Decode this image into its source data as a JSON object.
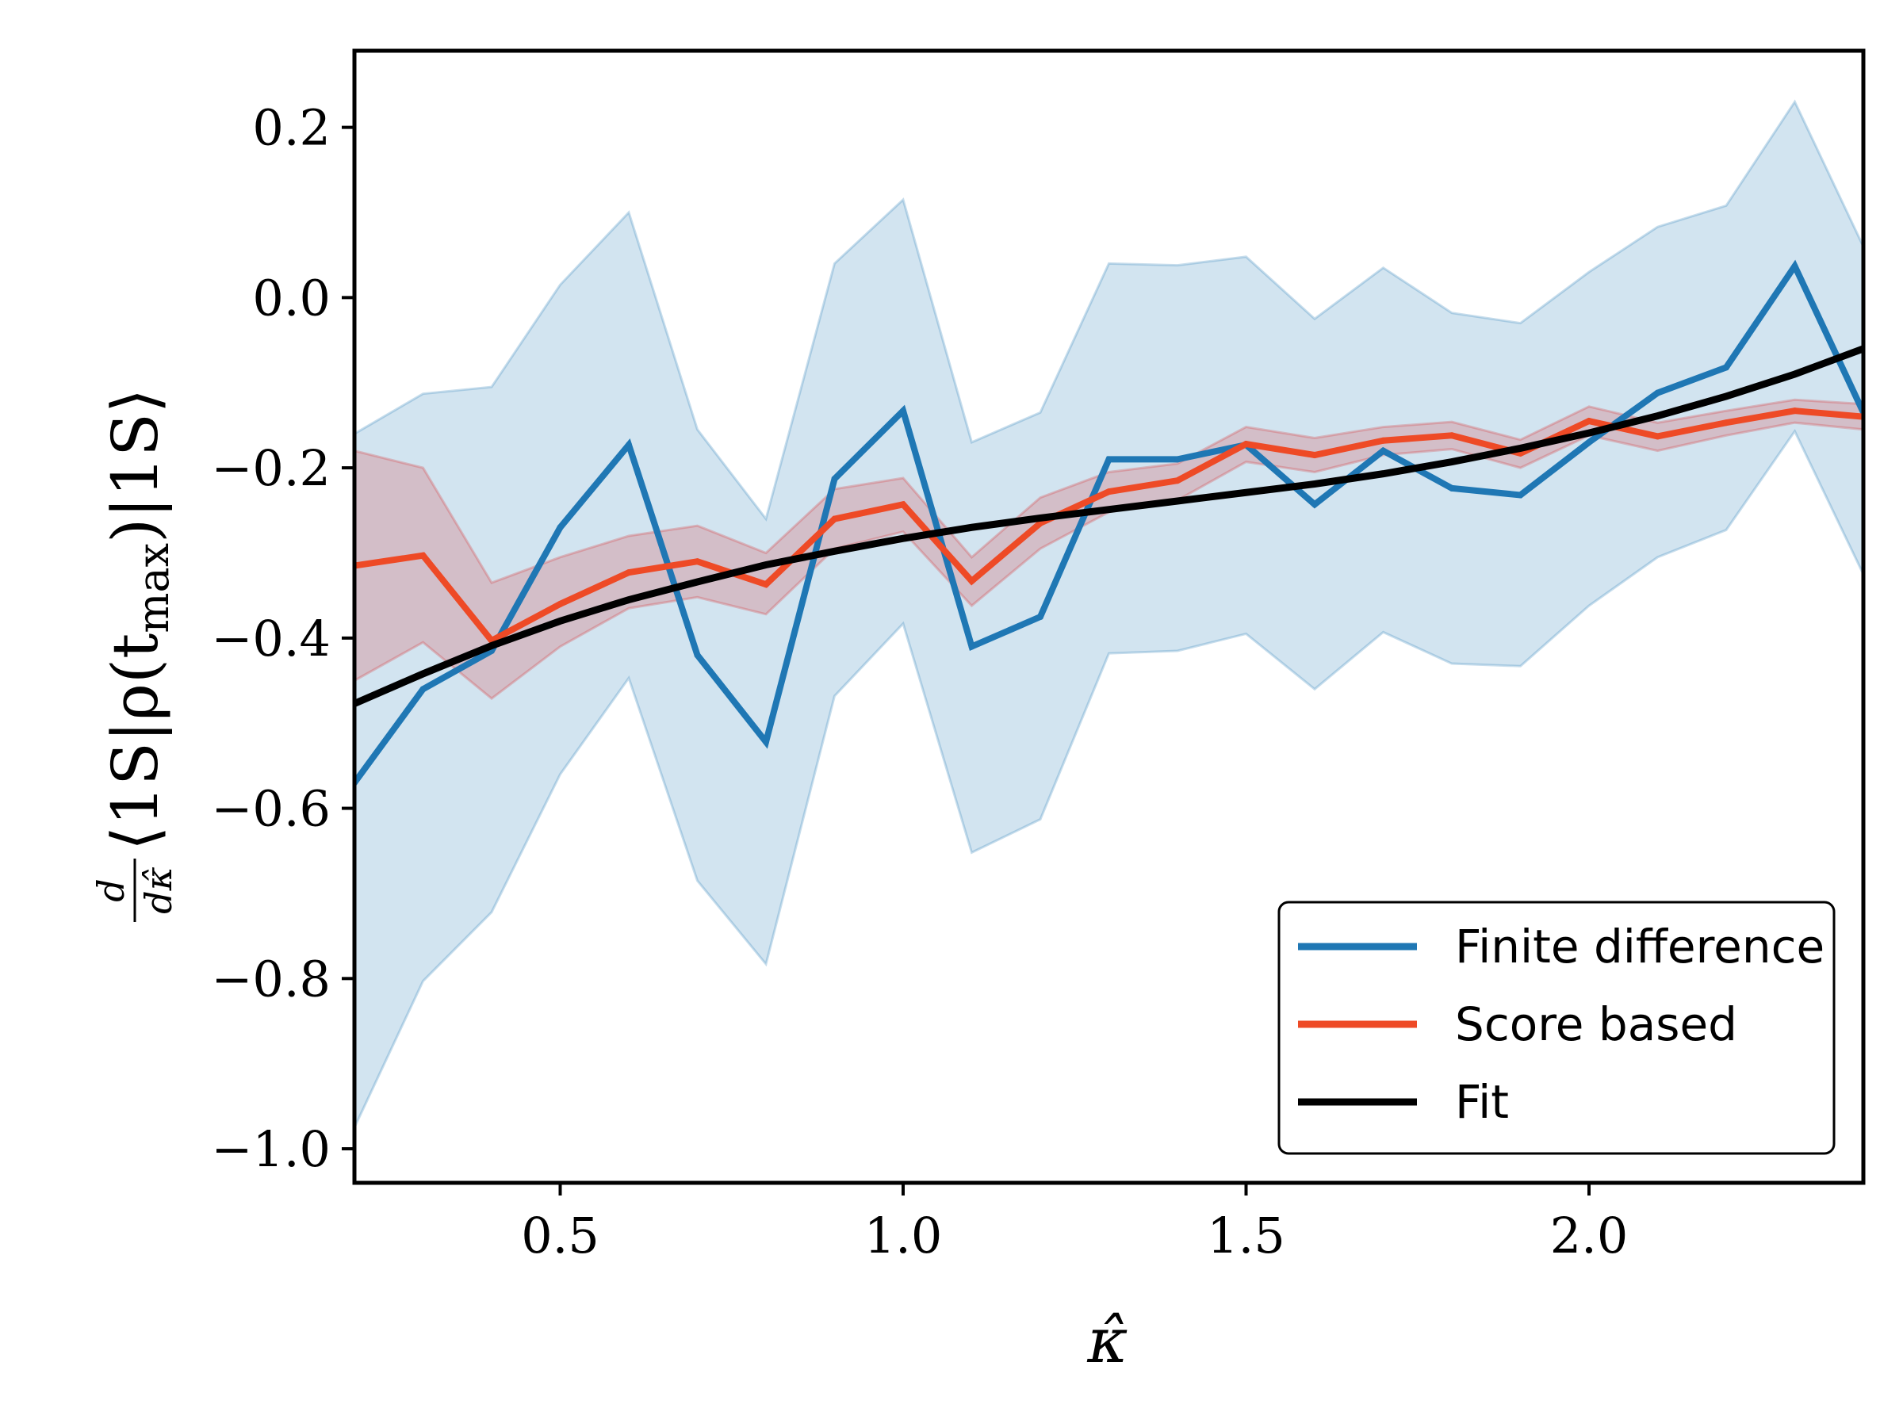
{
  "chart_data": {
    "type": "line",
    "xlabel": "κ̂",
    "ylabel": "d/dκ̂ ⟨1S|ρ(t_max)|1S⟩",
    "ylabel_parts": {
      "num": "d",
      "den": "dκ̂",
      "body": "⟨1S|ρ(t",
      "sub": "max",
      "tail": ")|1S⟩"
    },
    "xlim": [
      0.2,
      2.4
    ],
    "ylim": [
      -1.04,
      0.29
    ],
    "xticks": [
      0.5,
      1.0,
      1.5,
      2.0
    ],
    "xtick_labels": [
      "0.5",
      "1.0",
      "1.5",
      "2.0"
    ],
    "yticks": [
      0.2,
      0.0,
      -0.2,
      -0.4,
      -0.6,
      -0.8,
      -1.0
    ],
    "ytick_labels": [
      "0.2",
      "0.0",
      "−0.2",
      "−0.4",
      "−0.6",
      "−0.8",
      "−1.0"
    ],
    "x": [
      0.2,
      0.3,
      0.4,
      0.5,
      0.6,
      0.7,
      0.8,
      0.9,
      1.0,
      1.1,
      1.2,
      1.3,
      1.4,
      1.5,
      1.6,
      1.7,
      1.8,
      1.9,
      2.0,
      2.1,
      2.2,
      2.3,
      2.4
    ],
    "series": [
      {
        "name": "Finite difference",
        "color": "#1f77b4",
        "values": [
          -0.57,
          -0.46,
          -0.415,
          -0.27,
          -0.173,
          -0.42,
          -0.522,
          -0.213,
          -0.133,
          -0.41,
          -0.375,
          -0.19,
          -0.19,
          -0.173,
          -0.243,
          -0.18,
          -0.224,
          -0.232,
          -0.17,
          -0.112,
          -0.082,
          0.037,
          -0.135
        ],
        "band_upper": [
          -0.16,
          -0.113,
          -0.105,
          0.015,
          0.1,
          -0.155,
          -0.26,
          0.04,
          0.115,
          -0.17,
          -0.135,
          0.04,
          0.038,
          0.048,
          -0.025,
          0.035,
          -0.018,
          -0.03,
          0.03,
          0.083,
          0.108,
          0.23,
          0.06
        ],
        "band_lower": [
          -0.975,
          -0.803,
          -0.722,
          -0.56,
          -0.447,
          -0.685,
          -0.783,
          -0.468,
          -0.383,
          -0.652,
          -0.613,
          -0.418,
          -0.415,
          -0.395,
          -0.46,
          -0.393,
          -0.43,
          -0.433,
          -0.362,
          -0.305,
          -0.273,
          -0.157,
          -0.325
        ]
      },
      {
        "name": "Score based",
        "color": "#ee4a26",
        "values": [
          -0.315,
          -0.303,
          -0.403,
          -0.36,
          -0.323,
          -0.31,
          -0.337,
          -0.26,
          -0.243,
          -0.333,
          -0.265,
          -0.228,
          -0.215,
          -0.172,
          -0.185,
          -0.168,
          -0.162,
          -0.183,
          -0.145,
          -0.163,
          -0.147,
          -0.133,
          -0.14
        ],
        "band_upper": [
          -0.18,
          -0.2,
          -0.335,
          -0.305,
          -0.28,
          -0.268,
          -0.3,
          -0.225,
          -0.212,
          -0.305,
          -0.235,
          -0.205,
          -0.195,
          -0.152,
          -0.165,
          -0.152,
          -0.146,
          -0.167,
          -0.128,
          -0.147,
          -0.133,
          -0.12,
          -0.125
        ],
        "band_lower": [
          -0.45,
          -0.405,
          -0.471,
          -0.41,
          -0.365,
          -0.352,
          -0.372,
          -0.295,
          -0.275,
          -0.362,
          -0.295,
          -0.252,
          -0.238,
          -0.193,
          -0.205,
          -0.185,
          -0.178,
          -0.2,
          -0.162,
          -0.18,
          -0.162,
          -0.147,
          -0.155
        ]
      },
      {
        "name": "Fit",
        "color": "#000000",
        "values": [
          -0.477,
          -0.442,
          -0.409,
          -0.38,
          -0.355,
          -0.334,
          -0.314,
          -0.298,
          -0.283,
          -0.27,
          -0.259,
          -0.249,
          -0.239,
          -0.229,
          -0.219,
          -0.207,
          -0.193,
          -0.177,
          -0.159,
          -0.139,
          -0.116,
          -0.09,
          -0.06
        ]
      }
    ],
    "legend": {
      "location": "lower-right",
      "entries": [
        "Finite difference",
        "Score based",
        "Fit"
      ]
    }
  }
}
